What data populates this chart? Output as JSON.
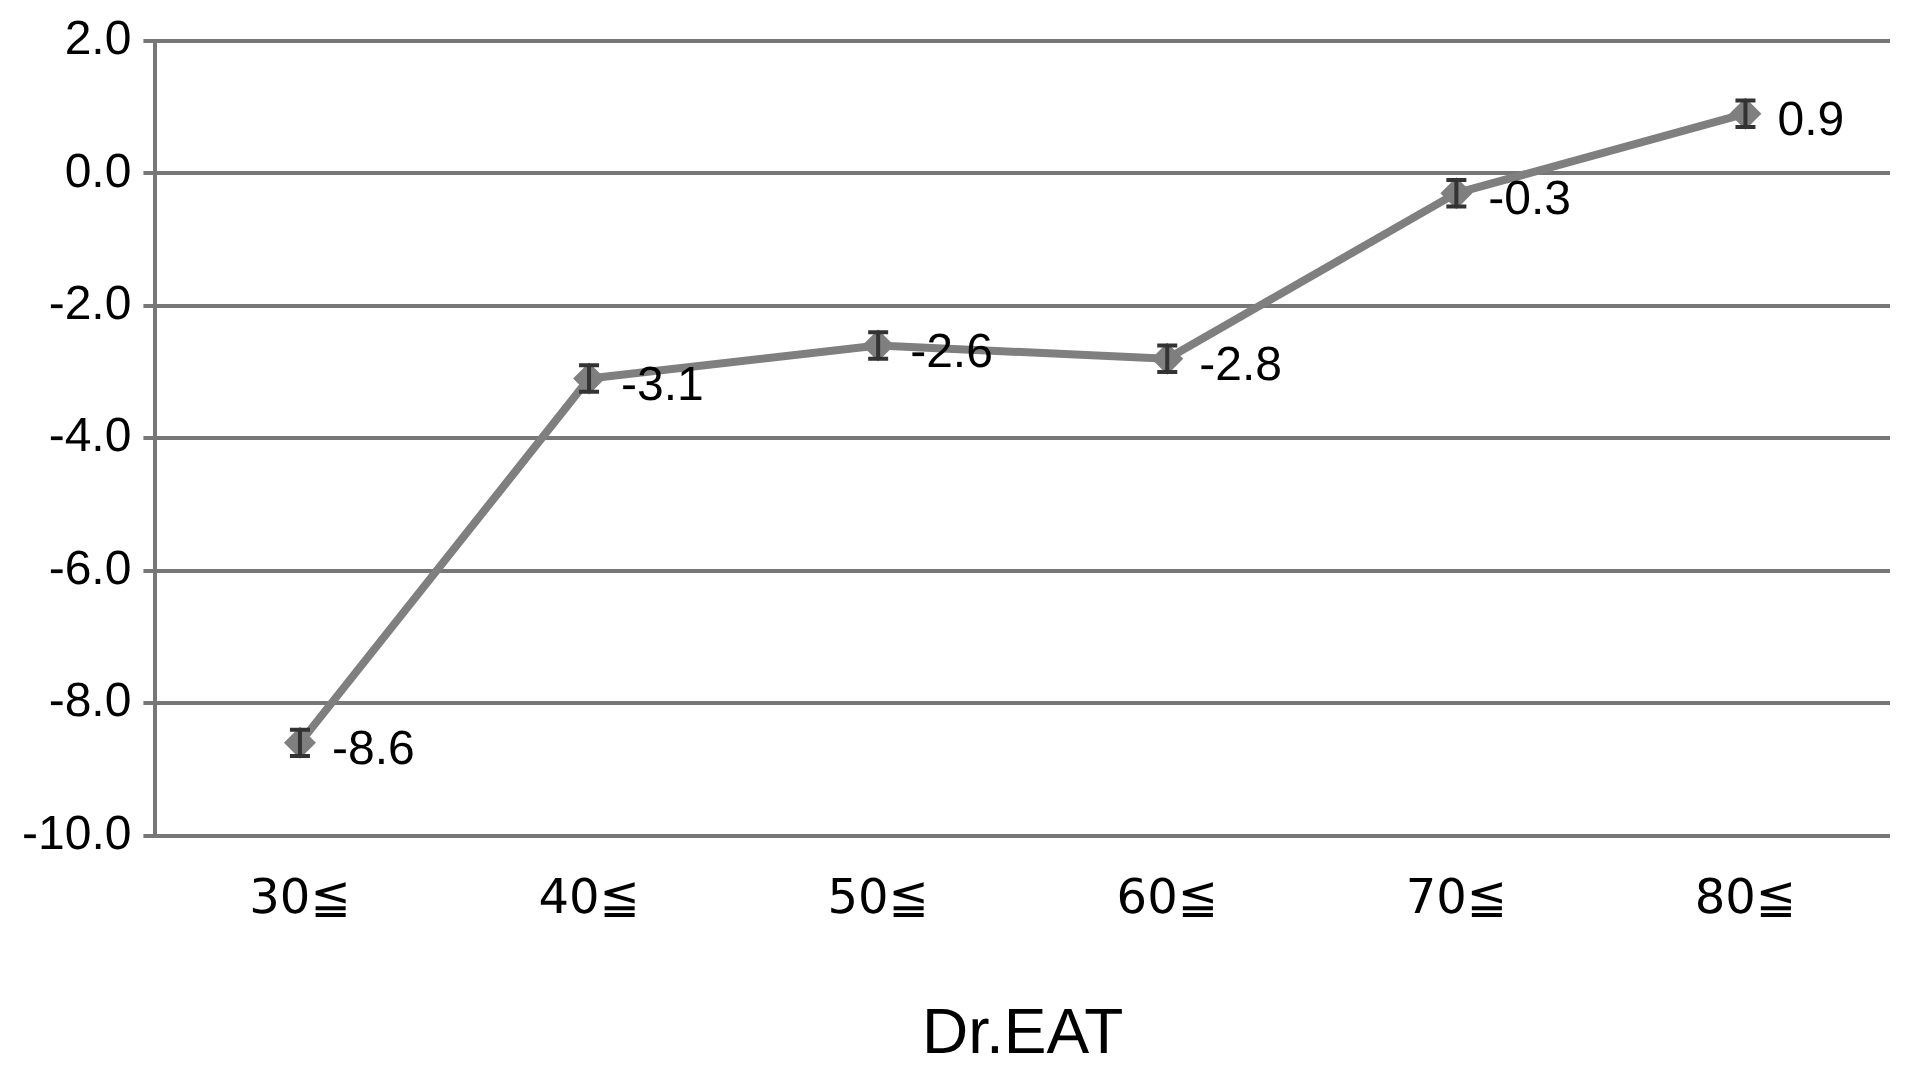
{
  "chart_data": {
    "type": "line",
    "xlabel": "Dr.EAT",
    "categories": [
      "30≦",
      "40≦",
      "50≦",
      "60≦",
      "70≦",
      "80≦"
    ],
    "series": [
      {
        "color": "#7f7f7f",
        "values": [
          -8.6,
          -3.1,
          -2.6,
          -2.8,
          -0.3,
          0.9
        ],
        "errors": [
          0.2,
          0.2,
          0.2,
          0.2,
          0.2,
          0.2
        ]
      }
    ],
    "ylim": [
      -10,
      2
    ],
    "yticks": [
      {
        "value": -10,
        "label": "-10.0"
      },
      {
        "value": -8,
        "label": "-8.0"
      },
      {
        "value": -6,
        "label": "-6.0"
      },
      {
        "value": -4,
        "label": "-4.0"
      },
      {
        "value": -2,
        "label": "-2.0"
      },
      {
        "value": 0,
        "label": "0.0"
      },
      {
        "value": 2,
        "label": "2.0"
      }
    ],
    "grid": "y",
    "legend": false,
    "marker": "diamond",
    "line_style": "solid",
    "data_labels": true
  }
}
